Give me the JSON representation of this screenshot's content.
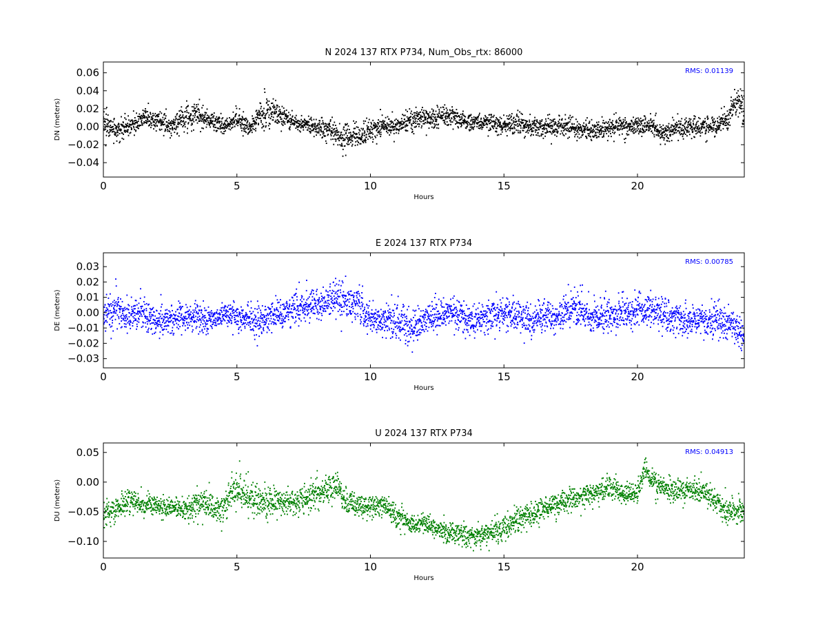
{
  "chart_data": [
    {
      "type": "scatter",
      "title": "N 2024 137 RTX  P734, Num_Obs_rtx: 86000",
      "xlabel": "Hours",
      "ylabel": "DN (meters)",
      "annotation": "RMS:  0.01139",
      "annotation_placement": "top-right",
      "xlim": [
        0,
        24
      ],
      "ylim": [
        -0.056,
        0.072
      ],
      "xticks": [
        0,
        5,
        10,
        15,
        20
      ],
      "yticks": [
        -0.04,
        -0.02,
        0.0,
        0.02,
        0.04,
        0.06
      ],
      "ytick_labels": [
        "−0.04",
        "−0.02",
        "0.00",
        "0.02",
        "0.04",
        "0.06"
      ],
      "color": "#000000",
      "grid": false,
      "series": [
        {
          "x": [
            0,
            0.5,
            1,
            1.5,
            2,
            2.5,
            3,
            3.5,
            4,
            4.5,
            5,
            5.5,
            6,
            6.5,
            7,
            7.5,
            8,
            8.5,
            9,
            9.5,
            10,
            10.5,
            11,
            11.5,
            12,
            12.5,
            13,
            13.5,
            14,
            14.5,
            15,
            15.5,
            16,
            16.5,
            17,
            17.5,
            18,
            18.5,
            19,
            19.5,
            20,
            20.5,
            21,
            21.5,
            22,
            22.5,
            23,
            23.4,
            23.7,
            24
          ],
          "y": [
            0.005,
            -0.005,
            0.0,
            0.01,
            0.008,
            0.0,
            0.01,
            0.012,
            0.008,
            0.0,
            0.008,
            0.0,
            0.015,
            0.015,
            0.005,
            0.003,
            0.0,
            -0.005,
            -0.012,
            -0.01,
            -0.005,
            0.0,
            0.0,
            0.008,
            0.01,
            0.01,
            0.012,
            0.008,
            0.005,
            0.005,
            0.0,
            0.005,
            0.0,
            0.0,
            0.0,
            0.0,
            -0.003,
            -0.005,
            0.0,
            0.0,
            0.0,
            0.0,
            -0.008,
            -0.003,
            0.0,
            0.0,
            0.0,
            0.01,
            0.03,
            0.02
          ],
          "spread": [
            0.014,
            0.014,
            0.013,
            0.012,
            0.012,
            0.014,
            0.016,
            0.016,
            0.012,
            0.01,
            0.012,
            0.012,
            0.02,
            0.018,
            0.012,
            0.01,
            0.012,
            0.014,
            0.018,
            0.018,
            0.012,
            0.012,
            0.012,
            0.012,
            0.012,
            0.014,
            0.012,
            0.01,
            0.01,
            0.012,
            0.012,
            0.014,
            0.012,
            0.012,
            0.012,
            0.012,
            0.012,
            0.012,
            0.012,
            0.012,
            0.012,
            0.012,
            0.012,
            0.012,
            0.012,
            0.012,
            0.012,
            0.014,
            0.02,
            0.018
          ]
        }
      ]
    },
    {
      "type": "scatter",
      "title": "E 2024 137 RTX  P734",
      "xlabel": "Hours",
      "ylabel": "DE (meters)",
      "annotation": "RMS:  0.00785",
      "annotation_placement": "top-right",
      "xlim": [
        0,
        24
      ],
      "ylim": [
        -0.036,
        0.039
      ],
      "xticks": [
        0,
        5,
        10,
        15,
        20
      ],
      "yticks": [
        -0.03,
        -0.02,
        -0.01,
        0.0,
        0.01,
        0.02,
        0.03
      ],
      "ytick_labels": [
        "−0.03",
        "−0.02",
        "−0.01",
        "0.00",
        "0.01",
        "0.02",
        "0.03"
      ],
      "color": "#0000ff",
      "grid": false,
      "series": [
        {
          "x": [
            0,
            0.5,
            1,
            1.5,
            2,
            2.5,
            3,
            3.5,
            4,
            4.5,
            5,
            5.5,
            6,
            6.5,
            7,
            7.5,
            8,
            8.5,
            9,
            9.5,
            10,
            10.5,
            11,
            11.5,
            12,
            12.5,
            13,
            13.5,
            14,
            14.5,
            15,
            15.5,
            16,
            16.5,
            17,
            17.5,
            18,
            18.5,
            19,
            19.5,
            20,
            20.5,
            21,
            21.5,
            22,
            22.5,
            23,
            23.5,
            24
          ],
          "y": [
            -0.002,
            0.002,
            -0.002,
            0.0,
            -0.005,
            -0.005,
            -0.003,
            -0.003,
            -0.005,
            0.0,
            -0.002,
            -0.005,
            -0.005,
            0.0,
            0.0,
            0.003,
            0.005,
            0.008,
            0.01,
            0.005,
            -0.005,
            -0.005,
            -0.005,
            -0.01,
            -0.005,
            -0.002,
            0.0,
            -0.003,
            -0.005,
            -0.002,
            0.0,
            -0.003,
            -0.005,
            -0.002,
            -0.003,
            0.003,
            0.0,
            -0.002,
            -0.003,
            0.0,
            0.002,
            0.003,
            -0.003,
            -0.005,
            -0.005,
            -0.005,
            -0.005,
            -0.008,
            -0.015
          ],
          "spread": [
            0.012,
            0.014,
            0.012,
            0.012,
            0.01,
            0.01,
            0.01,
            0.01,
            0.01,
            0.01,
            0.01,
            0.01,
            0.012,
            0.012,
            0.012,
            0.012,
            0.012,
            0.014,
            0.014,
            0.012,
            0.01,
            0.01,
            0.012,
            0.012,
            0.012,
            0.012,
            0.012,
            0.012,
            0.01,
            0.012,
            0.012,
            0.012,
            0.012,
            0.01,
            0.01,
            0.014,
            0.012,
            0.012,
            0.012,
            0.012,
            0.012,
            0.014,
            0.012,
            0.012,
            0.01,
            0.01,
            0.012,
            0.012,
            0.012
          ]
        }
      ]
    },
    {
      "type": "scatter",
      "title": "U 2024 137 RTX  P734",
      "xlabel": "Hours",
      "ylabel": "DU (meters)",
      "annotation": "RMS:  0.04913",
      "annotation_placement": "top-right",
      "xlim": [
        0,
        24
      ],
      "ylim": [
        -0.128,
        0.066
      ],
      "xticks": [
        0,
        5,
        10,
        15,
        20
      ],
      "yticks": [
        -0.1,
        -0.05,
        0.0,
        0.05
      ],
      "ytick_labels": [
        "−0.10",
        "−0.05",
        "0.00",
        "0.05"
      ],
      "color": "#008000",
      "grid": false,
      "series": [
        {
          "x": [
            0,
            0.5,
            1,
            1.5,
            2,
            2.5,
            3,
            3.5,
            4,
            4.5,
            5,
            5.25,
            5.5,
            6,
            6.5,
            7,
            7.5,
            8,
            8.5,
            8.8,
            9,
            9.5,
            10,
            10.5,
            11,
            11.5,
            12,
            12.5,
            13,
            13.5,
            14,
            14.5,
            15,
            15.5,
            16,
            16.5,
            17,
            17.5,
            18,
            18.5,
            19,
            19.5,
            20,
            20.3,
            20.5,
            21,
            21.5,
            22,
            22.5,
            23,
            23.5,
            24
          ],
          "y": [
            -0.055,
            -0.045,
            -0.03,
            -0.04,
            -0.04,
            -0.045,
            -0.045,
            -0.035,
            -0.04,
            -0.045,
            -0.005,
            -0.015,
            -0.025,
            -0.035,
            -0.03,
            -0.035,
            -0.03,
            -0.02,
            -0.01,
            -0.005,
            -0.03,
            -0.04,
            -0.04,
            -0.04,
            -0.06,
            -0.07,
            -0.07,
            -0.08,
            -0.085,
            -0.09,
            -0.09,
            -0.085,
            -0.075,
            -0.06,
            -0.055,
            -0.045,
            -0.04,
            -0.03,
            -0.025,
            -0.015,
            -0.01,
            -0.02,
            -0.02,
            0.025,
            0.0,
            -0.01,
            -0.015,
            -0.015,
            -0.015,
            -0.035,
            -0.05,
            -0.05
          ],
          "spread": [
            0.025,
            0.022,
            0.022,
            0.022,
            0.018,
            0.02,
            0.02,
            0.025,
            0.028,
            0.028,
            0.03,
            0.035,
            0.03,
            0.03,
            0.025,
            0.022,
            0.025,
            0.028,
            0.03,
            0.025,
            0.022,
            0.022,
            0.02,
            0.02,
            0.02,
            0.02,
            0.02,
            0.018,
            0.02,
            0.022,
            0.022,
            0.022,
            0.025,
            0.025,
            0.022,
            0.022,
            0.022,
            0.022,
            0.022,
            0.022,
            0.025,
            0.02,
            0.018,
            0.02,
            0.022,
            0.022,
            0.022,
            0.022,
            0.022,
            0.022,
            0.022,
            0.022
          ]
        }
      ]
    }
  ]
}
